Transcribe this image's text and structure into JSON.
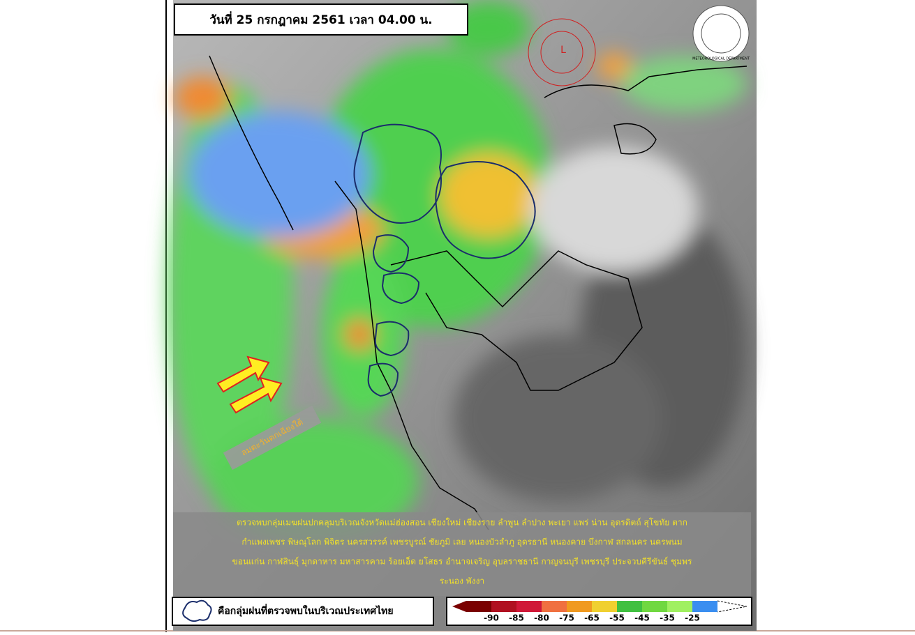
{
  "header": {
    "title": "วันที่ 25 กรกฎาคม 2561 เวลา 04.00 น."
  },
  "logo": {
    "text": "METEOROLOGICAL DEPARTMENT"
  },
  "map": {
    "low_pressure": "L",
    "wind_label": "ลมตะวันตกเฉียงใต้"
  },
  "caption": {
    "lines": [
      "ตรวจพบกลุ่มเมฆฝนปกคลุมบริเวณจังหวัดแม่ฮ่องสอน เชียงใหม่ เชียงราย ลำพูน ลำปาง พะเยา แพร่ น่าน อุตรดิตถ์ สุโขทัย ตาก",
      "กำแพงเพชร  พิษณุโลก พิจิตร นครสวรรค์ เพชรบูรณ์ ชัยภูมิ เลย หนองบัวลำภู อุดรธานี หนองคาย บึงกาฬ สกลนคร นครพนม",
      "ขอนแก่น กาฬสินธุ์ มุกดาหาร มหาสารคาม ร้อยเอ็ด ยโสธร อำนาจเจริญ อุบลราชธานี กาญจนบุรี เพชรบุรี ประจวบคีรีขันธ์ ชุมพร",
      "ระนอง  พังงา"
    ]
  },
  "legend": {
    "text": "คือกลุ่มฝนที่ตรวจพบในบริเวณประเทศไทย"
  },
  "color_scale": {
    "labels": [
      "-90",
      "-85",
      "-80",
      "-75",
      "-65",
      "-55",
      "-45",
      "-35",
      "-25"
    ]
  }
}
